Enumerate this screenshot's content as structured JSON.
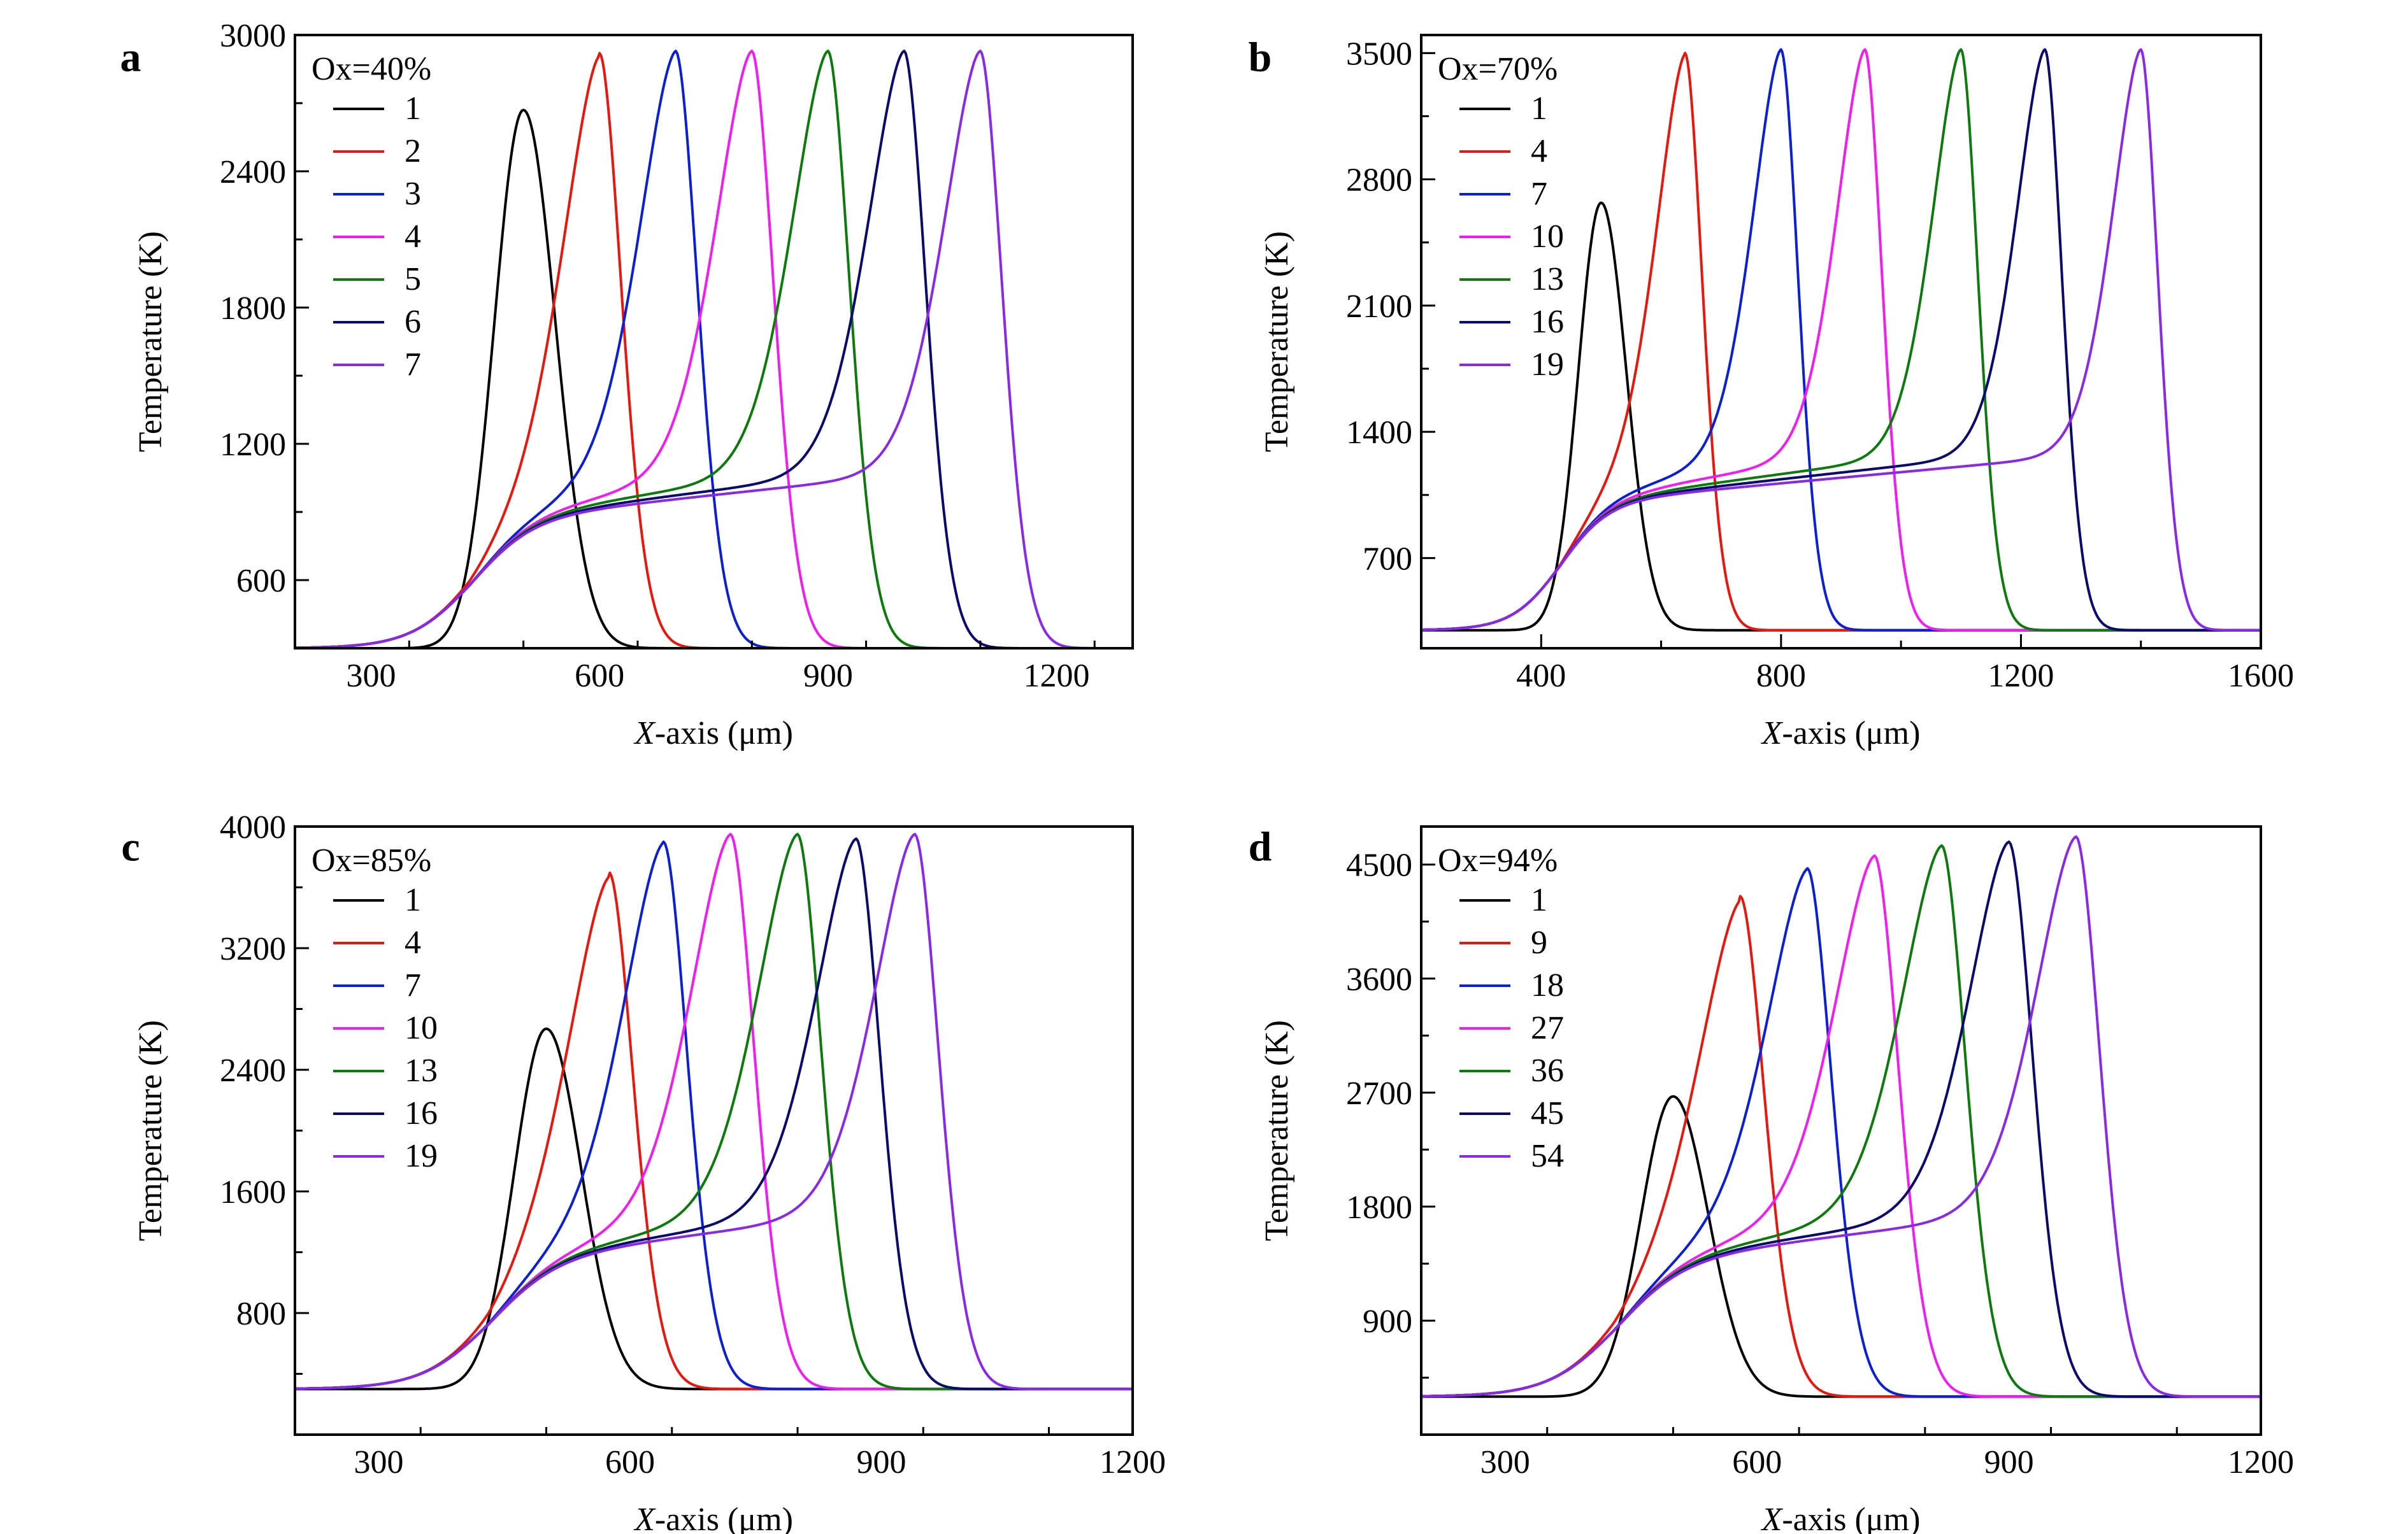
{
  "chart_data": [
    {
      "panel": "a",
      "type": "line",
      "annotation": "Ox=40%",
      "xlabel": "X-axis (μm)",
      "xlabel_italic_part": "X",
      "xlabel_rest": "-axis (μm)",
      "ylabel": "Temperature (K)",
      "xlim": [
        200,
        1300
      ],
      "ylim": [
        300,
        3000
      ],
      "x_ticks": [
        300,
        600,
        900,
        1200
      ],
      "y_ticks": [
        600,
        1200,
        1800,
        2400,
        3000
      ],
      "baseline": 300,
      "legend_position": "top-left",
      "series": [
        {
          "name": "1",
          "color": "#000000",
          "peak_x": 500,
          "peak_y": 2670,
          "plateau": 0,
          "plateau_end": 460
        },
        {
          "name": "2",
          "color": "#e8160c",
          "peak_x": 600,
          "peak_y": 2920,
          "plateau": 1100,
          "plateau_end": 530
        },
        {
          "name": "3",
          "color": "#0b1fd6",
          "peak_x": 700,
          "peak_y": 2930,
          "plateau": 1100,
          "plateau_end": 630
        },
        {
          "name": "4",
          "color": "#f01cf0",
          "peak_x": 800,
          "peak_y": 2930,
          "plateau": 1100,
          "plateau_end": 730
        },
        {
          "name": "5",
          "color": "#0c7a0c",
          "peak_x": 900,
          "peak_y": 2930,
          "plateau": 1100,
          "plateau_end": 830
        },
        {
          "name": "6",
          "color": "#0a0a6e",
          "peak_x": 1000,
          "peak_y": 2930,
          "plateau": 1100,
          "plateau_end": 930
        },
        {
          "name": "7",
          "color": "#8a28e8",
          "peak_x": 1100,
          "peak_y": 2930,
          "plateau": 1100,
          "plateau_end": 1030
        }
      ]
    },
    {
      "panel": "b",
      "type": "line",
      "annotation": "Ox=70%",
      "xlabel": "X-axis (μm)",
      "xlabel_italic_part": "X",
      "xlabel_rest": "-axis (μm)",
      "ylabel": "Temperature (K)",
      "xlim": [
        200,
        1600
      ],
      "ylim": [
        200,
        3600
      ],
      "x_ticks": [
        400,
        800,
        1200,
        1600
      ],
      "y_ticks": [
        700,
        1400,
        2100,
        2800,
        3500
      ],
      "baseline": 300,
      "legend_position": "top-left",
      "series": [
        {
          "name": "1",
          "color": "#000000",
          "peak_x": 500,
          "peak_y": 2670,
          "plateau": 0,
          "plateau_end": 460
        },
        {
          "name": "4",
          "color": "#e8160c",
          "peak_x": 640,
          "peak_y": 3500,
          "plateau": 1300,
          "plateau_end": 560
        },
        {
          "name": "7",
          "color": "#0b1fd6",
          "peak_x": 800,
          "peak_y": 3520,
          "plateau": 1300,
          "plateau_end": 720
        },
        {
          "name": "10",
          "color": "#f01cf0",
          "peak_x": 940,
          "peak_y": 3520,
          "plateau": 1300,
          "plateau_end": 870
        },
        {
          "name": "13",
          "color": "#0c7a0c",
          "peak_x": 1100,
          "peak_y": 3520,
          "plateau": 1300,
          "plateau_end": 1030
        },
        {
          "name": "16",
          "color": "#0a0a6e",
          "peak_x": 1240,
          "peak_y": 3520,
          "plateau": 1300,
          "plateau_end": 1170
        },
        {
          "name": "19",
          "color": "#8a28e8",
          "peak_x": 1400,
          "peak_y": 3520,
          "plateau": 1300,
          "plateau_end": 1330
        }
      ]
    },
    {
      "panel": "c",
      "type": "line",
      "annotation": "Ox=85%",
      "xlabel": "X-axis (μm)",
      "xlabel_italic_part": "X",
      "xlabel_rest": "-axis (μm)",
      "ylabel": "Temperature (K)",
      "xlim": [
        200,
        1200
      ],
      "ylim": [
        0,
        4000
      ],
      "x_ticks": [
        300,
        600,
        900,
        1200
      ],
      "y_ticks": [
        800,
        1600,
        2400,
        3200,
        4000
      ],
      "baseline": 300,
      "legend_position": "top-left",
      "series": [
        {
          "name": "1",
          "color": "#000000",
          "peak_x": 500,
          "peak_y": 2670,
          "plateau": 0,
          "plateau_end": 460
        },
        {
          "name": "4",
          "color": "#e8160c",
          "peak_x": 575,
          "peak_y": 3700,
          "plateau": 1500,
          "plateau_end": 520
        },
        {
          "name": "7",
          "color": "#0b1fd6",
          "peak_x": 640,
          "peak_y": 3900,
          "plateau": 1500,
          "plateau_end": 585
        },
        {
          "name": "10",
          "color": "#f01cf0",
          "peak_x": 720,
          "peak_y": 3950,
          "plateau": 1500,
          "plateau_end": 660
        },
        {
          "name": "13",
          "color": "#0c7a0c",
          "peak_x": 800,
          "peak_y": 3950,
          "plateau": 1500,
          "plateau_end": 740
        },
        {
          "name": "16",
          "color": "#0a0a6e",
          "peak_x": 870,
          "peak_y": 3920,
          "plateau": 1500,
          "plateau_end": 810
        },
        {
          "name": "19",
          "color": "#8a28e8",
          "peak_x": 940,
          "peak_y": 3950,
          "plateau": 1500,
          "plateau_end": 880
        }
      ]
    },
    {
      "panel": "d",
      "type": "line",
      "annotation": "Ox=94%",
      "xlabel": "X-axis (μm)",
      "xlabel_italic_part": "X",
      "xlabel_rest": "-axis (μm)",
      "ylabel": "Temperature (K)",
      "xlim": [
        200,
        1200
      ],
      "ylim": [
        0,
        4800
      ],
      "x_ticks": [
        300,
        600,
        900,
        1200
      ],
      "y_ticks": [
        900,
        1800,
        2700,
        3600,
        4500
      ],
      "baseline": 300,
      "legend_position": "top-left",
      "series": [
        {
          "name": "1",
          "color": "#000000",
          "peak_x": 500,
          "peak_y": 2670,
          "plateau": 0,
          "plateau_end": 460
        },
        {
          "name": "9",
          "color": "#e8160c",
          "peak_x": 580,
          "peak_y": 4250,
          "plateau": 1800,
          "plateau_end": 520
        },
        {
          "name": "18",
          "color": "#0b1fd6",
          "peak_x": 660,
          "peak_y": 4470,
          "plateau": 1800,
          "plateau_end": 600
        },
        {
          "name": "27",
          "color": "#f01cf0",
          "peak_x": 740,
          "peak_y": 4570,
          "plateau": 1800,
          "plateau_end": 680
        },
        {
          "name": "36",
          "color": "#0c7a0c",
          "peak_x": 820,
          "peak_y": 4650,
          "plateau": 1800,
          "plateau_end": 760
        },
        {
          "name": "45",
          "color": "#0a0a6e",
          "peak_x": 900,
          "peak_y": 4680,
          "plateau": 1800,
          "plateau_end": 840
        },
        {
          "name": "54",
          "color": "#8a28e8",
          "peak_x": 980,
          "peak_y": 4720,
          "plateau": 1800,
          "plateau_end": 920
        }
      ]
    }
  ]
}
